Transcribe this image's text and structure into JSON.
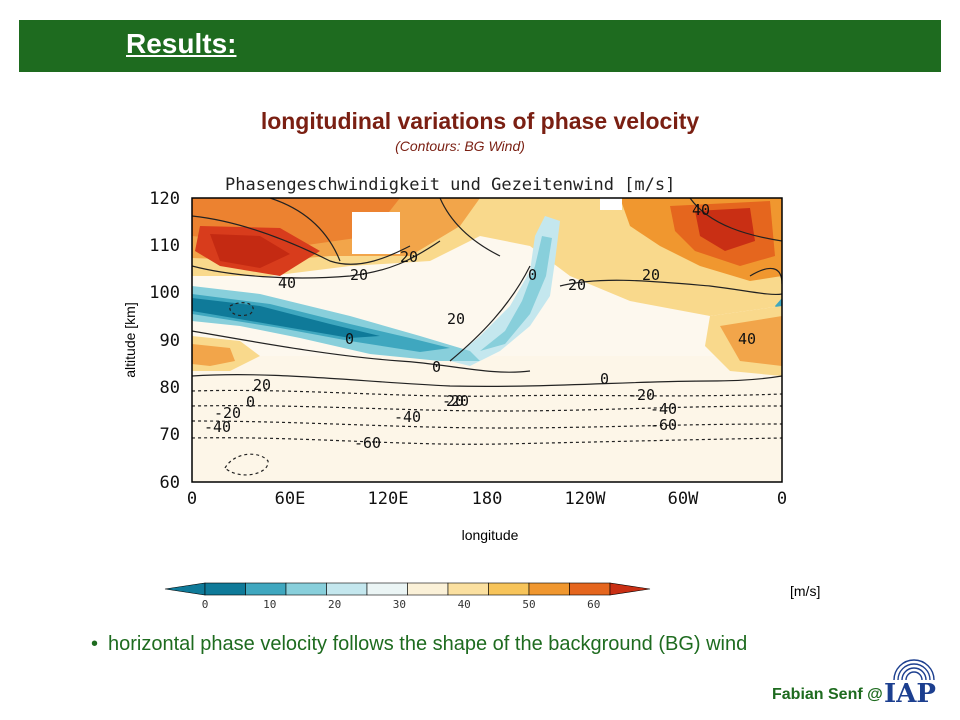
{
  "slide": {
    "section_title": "Results:",
    "title": "longitudinal variations of phase velocity",
    "subtitle": "(Contours: BG Wind)",
    "ylabel": "altitude [km]",
    "xlabel": "longitude",
    "unit": "[m/s]",
    "bullet": "horizontal phase velocity follows the shape of the background (BG) wind",
    "footer": "Fabian Senf @",
    "logo_text": "IAP"
  },
  "colors": {
    "title_bar": "#1e6b1f",
    "title_text": "#7a1f12",
    "bullet_text": "#1e6b1f",
    "logo": "#1c3f8f"
  },
  "chart_data": {
    "type": "heatmap",
    "title": "Phasengeschwindigkeit und Gezeitenwind [m/s]",
    "xlabel": "longitude",
    "ylabel": "altitude [km]",
    "x_ticks": [
      "0",
      "60E",
      "120E",
      "180",
      "120W",
      "60W",
      "0"
    ],
    "y_ticks": [
      120,
      110,
      100,
      90,
      80,
      70,
      60
    ],
    "ylim": [
      60,
      120
    ],
    "xlim": [
      0,
      360
    ],
    "contour_labels": [
      "20",
      "20",
      "40",
      "40",
      "0",
      "0",
      "20",
      "20",
      "20",
      "40",
      "0",
      "0",
      "20",
      "0",
      "20",
      "-20",
      "-40",
      "-20",
      "-40",
      "-60",
      "-20",
      "-40",
      "-60"
    ],
    "colorbar": {
      "ticks": [
        "0",
        "10",
        "20",
        "30",
        "40",
        "50",
        "60"
      ],
      "colors": [
        "#0f7a99",
        "#3fa7bf",
        "#88cfdb",
        "#c4e7ee",
        "#ebf5f5",
        "#fbf1d8",
        "#fbe0a0",
        "#f7c45a",
        "#f0972f",
        "#e5661e",
        "#c92f14"
      ]
    }
  }
}
